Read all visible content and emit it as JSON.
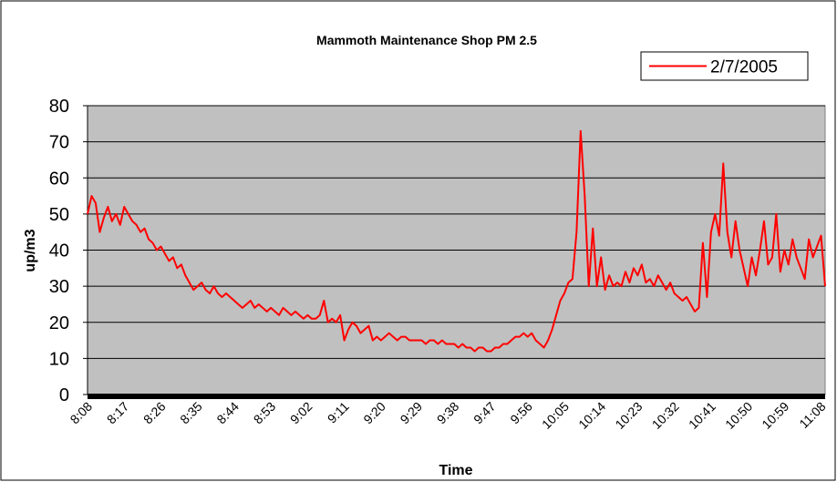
{
  "chart_data": {
    "type": "line",
    "title": "Mammoth Maintenance Shop PM 2.5",
    "xlabel": "Time",
    "ylabel": "up/m3",
    "categories": [
      "8:08",
      null,
      null,
      null,
      null,
      null,
      null,
      null,
      null,
      "8:17",
      null,
      null,
      null,
      null,
      null,
      null,
      null,
      null,
      "8:26",
      null,
      null,
      null,
      null,
      null,
      null,
      null,
      null,
      "8:35",
      null,
      null,
      null,
      null,
      null,
      null,
      null,
      null,
      "8:44",
      null,
      null,
      null,
      null,
      null,
      null,
      null,
      null,
      "8:53",
      null,
      null,
      null,
      null,
      null,
      null,
      null,
      null,
      "9:02",
      null,
      null,
      null,
      null,
      null,
      null,
      null,
      null,
      "9:11",
      null,
      null,
      null,
      null,
      null,
      null,
      null,
      null,
      "9:20",
      null,
      null,
      null,
      null,
      null,
      null,
      null,
      null,
      "9:29",
      null,
      null,
      null,
      null,
      null,
      null,
      null,
      null,
      "9:38",
      null,
      null,
      null,
      null,
      null,
      null,
      null,
      null,
      "9:47",
      null,
      null,
      null,
      null,
      null,
      null,
      null,
      null,
      "9:56",
      null,
      null,
      null,
      null,
      null,
      null,
      null,
      null,
      "10:05",
      null,
      null,
      null,
      null,
      null,
      null,
      null,
      null,
      "10:14",
      null,
      null,
      null,
      null,
      null,
      null,
      null,
      null,
      "10:23",
      null,
      null,
      null,
      null,
      null,
      null,
      null,
      null,
      "10:32",
      null,
      null,
      null,
      null,
      null,
      null,
      null,
      null,
      "10:41",
      null,
      null,
      null,
      null,
      null,
      null,
      null,
      null,
      "10:50",
      null,
      null,
      null,
      null,
      null,
      null,
      null,
      null,
      "10:59",
      null,
      null,
      null,
      null,
      null,
      null,
      null,
      null,
      "11:08",
      null
    ],
    "series": [
      {
        "name": "2/7/2005",
        "color": "#ff0000",
        "values": [
          50,
          55,
          53,
          45,
          49,
          52,
          48,
          50,
          47,
          52,
          50,
          48,
          47,
          45,
          46,
          43,
          42,
          40,
          41,
          39,
          37,
          38,
          35,
          36,
          33,
          31,
          29,
          30,
          31,
          29,
          28,
          30,
          28,
          27,
          28,
          27,
          26,
          25,
          24,
          25,
          26,
          24,
          25,
          24,
          23,
          24,
          23,
          22,
          24,
          23,
          22,
          23,
          22,
          21,
          22,
          21,
          21,
          22,
          26,
          20,
          21,
          20,
          22,
          15,
          18,
          20,
          19,
          17,
          18,
          19,
          15,
          16,
          15,
          16,
          17,
          16,
          15,
          16,
          16,
          15,
          15,
          15,
          15,
          14,
          15,
          15,
          14,
          15,
          14,
          14,
          14,
          13,
          14,
          13,
          13,
          12,
          13,
          13,
          12,
          12,
          13,
          13,
          14,
          14,
          15,
          16,
          16,
          17,
          16,
          17,
          15,
          14,
          13,
          15,
          18,
          22,
          26,
          28,
          31,
          32,
          45,
          73,
          55,
          30,
          46,
          30,
          38,
          29,
          33,
          30,
          31,
          30,
          34,
          31,
          35,
          33,
          36,
          31,
          32,
          30,
          33,
          31,
          29,
          31,
          28,
          27,
          26,
          27,
          25,
          23,
          24,
          42,
          27,
          45,
          50,
          44,
          64,
          45,
          38,
          48,
          40,
          35,
          30,
          38,
          33,
          40,
          48,
          36,
          38,
          50,
          34,
          40,
          36,
          43,
          38,
          35,
          32,
          43,
          38,
          41,
          44,
          30
        ]
      }
    ],
    "ylim": [
      0,
      80
    ],
    "yticks": [
      0,
      10,
      20,
      30,
      40,
      50,
      60,
      70,
      80
    ],
    "grid": true,
    "legend": "top-right"
  }
}
